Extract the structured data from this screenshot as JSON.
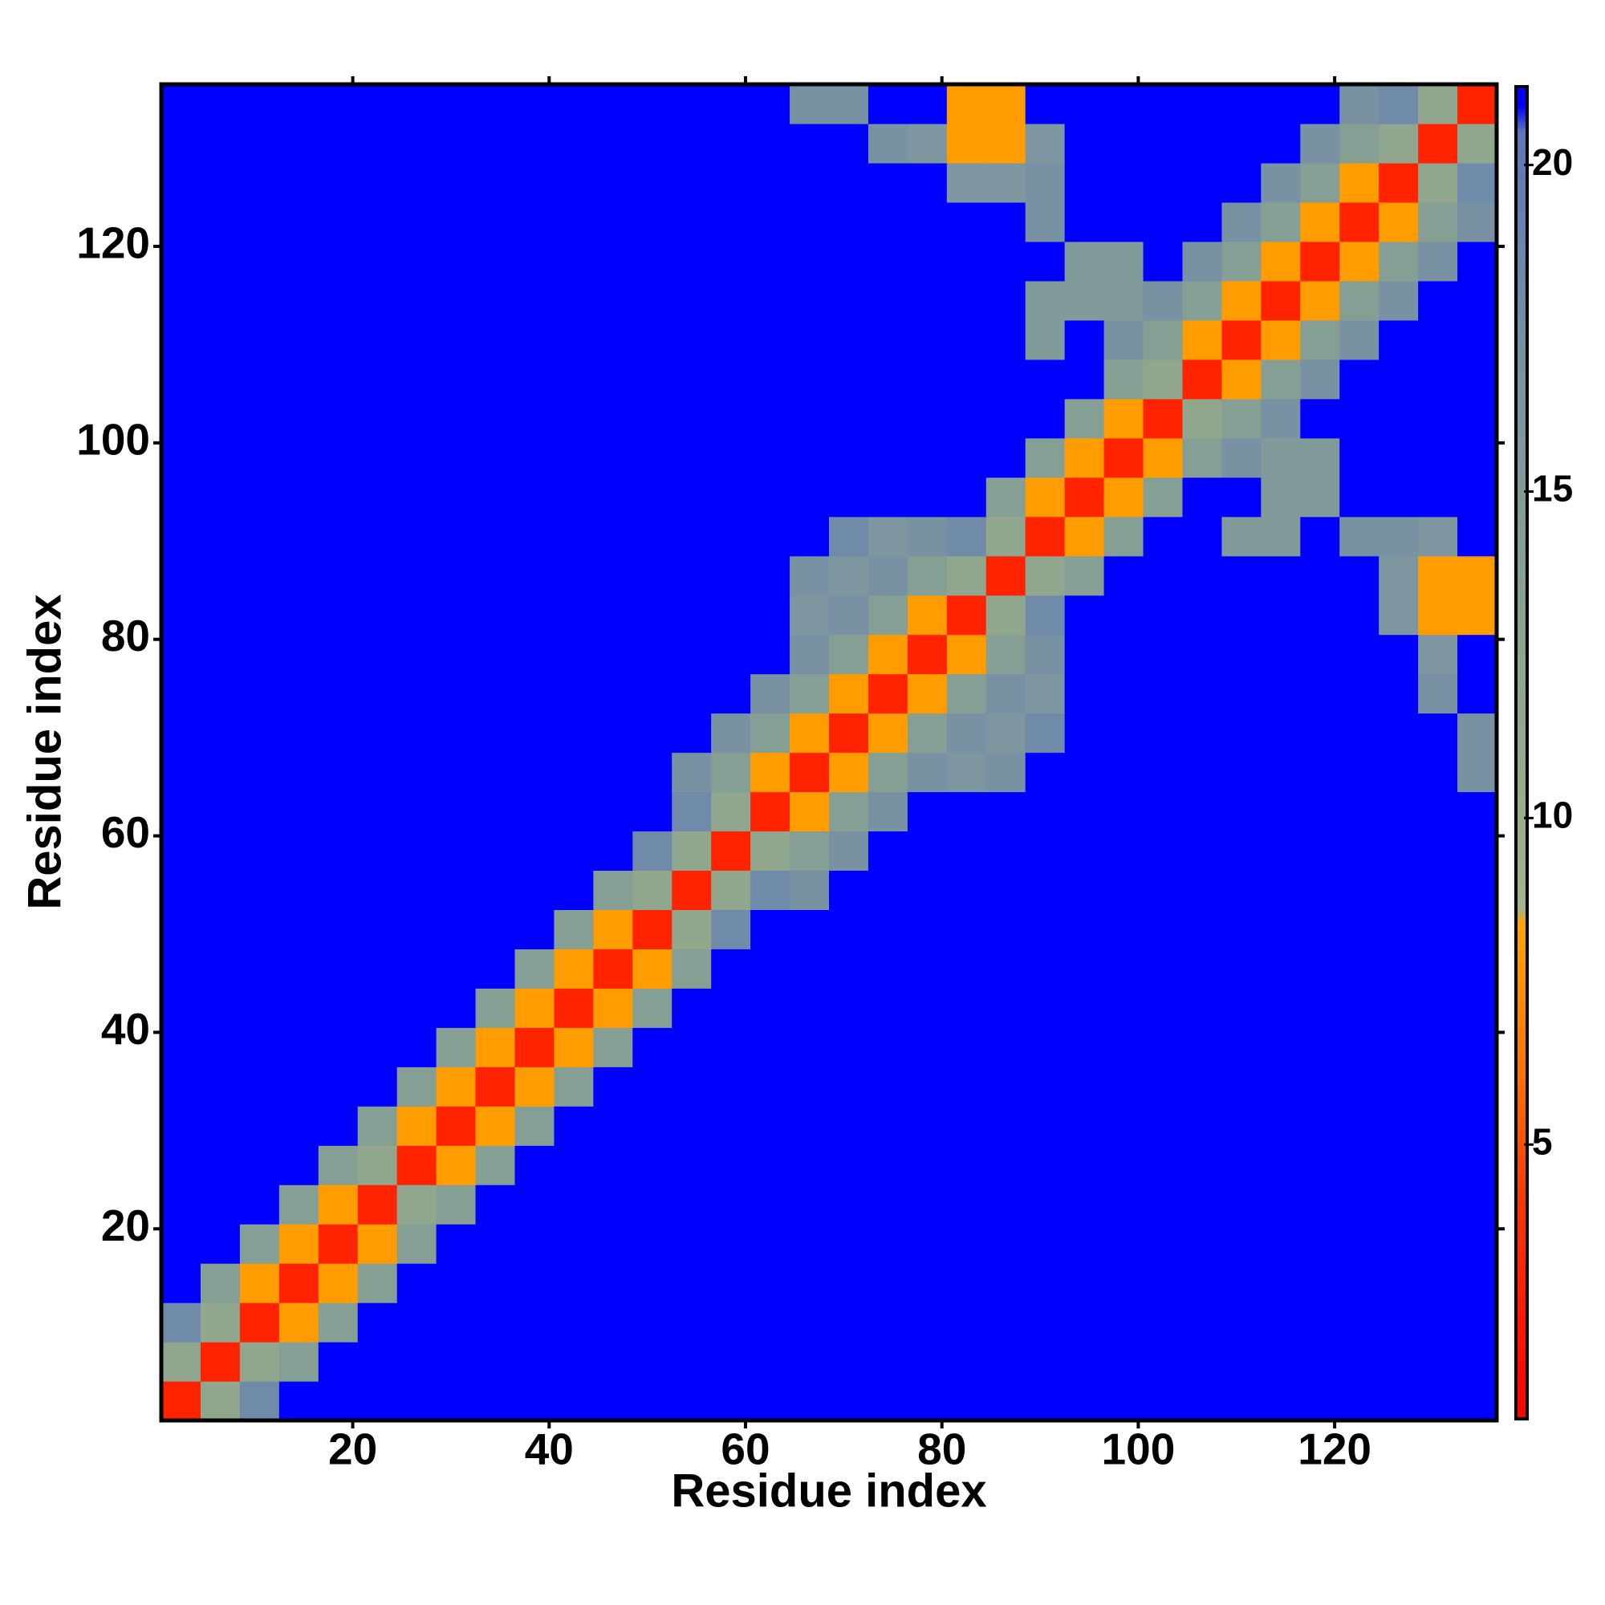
{
  "chart_data": {
    "type": "heatmap",
    "xlabel": "Residue index",
    "ylabel": "Residue index",
    "x": [
      2.5,
      6.5,
      10.5,
      14.5,
      18.5,
      22.5,
      26.5,
      30.5,
      34.5,
      38.5,
      42.5,
      46.5,
      50.5,
      54.5,
      58.5,
      62.5,
      66.5,
      70.5,
      74.5,
      78.5,
      82.5,
      86.5,
      90.5,
      94.5,
      98.5,
      102.5,
      106.5,
      110.5,
      114.5,
      118.5,
      122.5,
      126.5,
      130.5,
      134.5
    ],
    "y": [
      2.5,
      6.5,
      10.5,
      14.5,
      18.5,
      22.5,
      26.5,
      30.5,
      34.5,
      38.5,
      42.5,
      46.5,
      50.5,
      54.5,
      58.5,
      62.5,
      66.5,
      70.5,
      74.5,
      78.5,
      82.5,
      86.5,
      90.5,
      94.5,
      98.5,
      102.5,
      106.5,
      110.5,
      114.5,
      118.5,
      122.5,
      126.5,
      130.5,
      134.5
    ],
    "z": [
      [
        3,
        12,
        18,
        21,
        21,
        21,
        21,
        21,
        21,
        21,
        21,
        21,
        21,
        21,
        21,
        21,
        21,
        21,
        21,
        21,
        21,
        21,
        21,
        21,
        21,
        21,
        21,
        21,
        21,
        21,
        21,
        21,
        21,
        21
      ],
      [
        12,
        3,
        12,
        14,
        21,
        21,
        21,
        21,
        21,
        21,
        21,
        21,
        21,
        21,
        21,
        21,
        21,
        21,
        21,
        21,
        21,
        21,
        21,
        21,
        21,
        21,
        21,
        21,
        21,
        21,
        21,
        21,
        21,
        21
      ],
      [
        18,
        12,
        3,
        8,
        14,
        21,
        21,
        21,
        21,
        21,
        21,
        21,
        21,
        21,
        21,
        21,
        21,
        21,
        21,
        21,
        21,
        21,
        21,
        21,
        21,
        21,
        21,
        21,
        21,
        21,
        21,
        21,
        21,
        21
      ],
      [
        21,
        14,
        8,
        3,
        8,
        14,
        21,
        21,
        21,
        21,
        21,
        21,
        21,
        21,
        21,
        21,
        21,
        21,
        21,
        21,
        21,
        21,
        21,
        21,
        21,
        21,
        21,
        21,
        21,
        21,
        21,
        21,
        21,
        21
      ],
      [
        21,
        21,
        14,
        8,
        3,
        8,
        14,
        21,
        21,
        21,
        21,
        21,
        21,
        21,
        21,
        21,
        21,
        21,
        21,
        21,
        21,
        21,
        21,
        21,
        21,
        21,
        21,
        21,
        21,
        21,
        21,
        21,
        21,
        21
      ],
      [
        21,
        21,
        21,
        14,
        8,
        3,
        12,
        14,
        21,
        21,
        21,
        21,
        21,
        21,
        21,
        21,
        21,
        21,
        21,
        21,
        21,
        21,
        21,
        21,
        21,
        21,
        21,
        21,
        21,
        21,
        21,
        21,
        21,
        21
      ],
      [
        21,
        21,
        21,
        21,
        14,
        12,
        3,
        8,
        14,
        21,
        21,
        21,
        21,
        21,
        21,
        21,
        21,
        21,
        21,
        21,
        21,
        21,
        21,
        21,
        21,
        21,
        21,
        21,
        21,
        21,
        21,
        21,
        21,
        21
      ],
      [
        21,
        21,
        21,
        21,
        21,
        14,
        8,
        3,
        8,
        14,
        21,
        21,
        21,
        21,
        21,
        21,
        21,
        21,
        21,
        21,
        21,
        21,
        21,
        21,
        21,
        21,
        21,
        21,
        21,
        21,
        21,
        21,
        21,
        21
      ],
      [
        21,
        21,
        21,
        21,
        21,
        21,
        14,
        8,
        3,
        8,
        14,
        21,
        21,
        21,
        21,
        21,
        21,
        21,
        21,
        21,
        21,
        21,
        21,
        21,
        21,
        21,
        21,
        21,
        21,
        21,
        21,
        21,
        21,
        21
      ],
      [
        21,
        21,
        21,
        21,
        21,
        21,
        21,
        14,
        8,
        3,
        8,
        14,
        21,
        21,
        21,
        21,
        21,
        21,
        21,
        21,
        21,
        21,
        21,
        21,
        21,
        21,
        21,
        21,
        21,
        21,
        21,
        21,
        21,
        21
      ],
      [
        21,
        21,
        21,
        21,
        21,
        21,
        21,
        21,
        14,
        8,
        3,
        8,
        14,
        21,
        21,
        21,
        21,
        21,
        21,
        21,
        21,
        21,
        21,
        21,
        21,
        21,
        21,
        21,
        21,
        21,
        21,
        21,
        21,
        21
      ],
      [
        21,
        21,
        21,
        21,
        21,
        21,
        21,
        21,
        21,
        14,
        8,
        3,
        8,
        14,
        21,
        21,
        21,
        21,
        21,
        21,
        21,
        21,
        21,
        21,
        21,
        21,
        21,
        21,
        21,
        21,
        21,
        21,
        21,
        21
      ],
      [
        21,
        21,
        21,
        21,
        21,
        21,
        21,
        21,
        21,
        21,
        14,
        8,
        3,
        12,
        18,
        21,
        21,
        21,
        21,
        21,
        21,
        21,
        21,
        21,
        21,
        21,
        21,
        21,
        21,
        21,
        21,
        21,
        21,
        21
      ],
      [
        21,
        21,
        21,
        21,
        21,
        21,
        21,
        21,
        21,
        21,
        21,
        14,
        12,
        3,
        12,
        18,
        17,
        21,
        21,
        21,
        21,
        21,
        21,
        21,
        21,
        21,
        21,
        21,
        21,
        21,
        21,
        21,
        21,
        21
      ],
      [
        21,
        21,
        21,
        21,
        21,
        21,
        21,
        21,
        21,
        21,
        21,
        21,
        18,
        12,
        3,
        12,
        14,
        17,
        21,
        21,
        21,
        21,
        21,
        21,
        21,
        21,
        21,
        21,
        21,
        21,
        21,
        21,
        21,
        21
      ],
      [
        21,
        21,
        21,
        21,
        21,
        21,
        21,
        21,
        21,
        21,
        21,
        21,
        21,
        18,
        12,
        3,
        8,
        14,
        17,
        21,
        21,
        21,
        21,
        21,
        21,
        21,
        21,
        21,
        21,
        21,
        21,
        21,
        21,
        21
      ],
      [
        21,
        21,
        21,
        21,
        21,
        21,
        21,
        21,
        21,
        21,
        21,
        21,
        21,
        17,
        14,
        8,
        3,
        8,
        14,
        17,
        16,
        17,
        21,
        21,
        21,
        21,
        21,
        21,
        21,
        21,
        21,
        21,
        21,
        17
      ],
      [
        21,
        21,
        21,
        21,
        21,
        21,
        21,
        21,
        21,
        21,
        21,
        21,
        21,
        21,
        17,
        14,
        8,
        3,
        8,
        14,
        17,
        16,
        18,
        21,
        21,
        21,
        21,
        21,
        21,
        21,
        21,
        21,
        21,
        17
      ],
      [
        21,
        21,
        21,
        21,
        21,
        21,
        21,
        21,
        21,
        21,
        21,
        21,
        21,
        21,
        21,
        17,
        14,
        8,
        3,
        8,
        14,
        17,
        16,
        21,
        21,
        21,
        21,
        21,
        21,
        21,
        21,
        21,
        17,
        21
      ],
      [
        21,
        21,
        21,
        21,
        21,
        21,
        21,
        21,
        21,
        21,
        21,
        21,
        21,
        21,
        21,
        21,
        17,
        14,
        8,
        3,
        8,
        14,
        17,
        21,
        21,
        21,
        21,
        21,
        21,
        21,
        21,
        21,
        16,
        21
      ],
      [
        21,
        21,
        21,
        21,
        21,
        21,
        21,
        21,
        21,
        21,
        21,
        21,
        21,
        21,
        21,
        21,
        16,
        17,
        14,
        8,
        3,
        12,
        18,
        21,
        21,
        21,
        21,
        21,
        21,
        21,
        21,
        16,
        8,
        8
      ],
      [
        21,
        21,
        21,
        21,
        21,
        21,
        21,
        21,
        21,
        21,
        21,
        21,
        21,
        21,
        21,
        21,
        17,
        16,
        17,
        14,
        12,
        3,
        12,
        14,
        21,
        21,
        21,
        21,
        21,
        21,
        21,
        16,
        8,
        8
      ],
      [
        21,
        21,
        21,
        21,
        21,
        21,
        21,
        21,
        21,
        21,
        21,
        21,
        21,
        21,
        21,
        21,
        21,
        18,
        16,
        17,
        18,
        12,
        3,
        8,
        14,
        21,
        21,
        15,
        15,
        21,
        17,
        17,
        16,
        21
      ],
      [
        21,
        21,
        21,
        21,
        21,
        21,
        21,
        21,
        21,
        21,
        21,
        21,
        21,
        21,
        21,
        21,
        21,
        21,
        21,
        21,
        21,
        14,
        8,
        3,
        8,
        14,
        21,
        21,
        15,
        15,
        21,
        21,
        21,
        21
      ],
      [
        21,
        21,
        21,
        21,
        21,
        21,
        21,
        21,
        21,
        21,
        21,
        21,
        21,
        21,
        21,
        21,
        21,
        21,
        21,
        21,
        21,
        21,
        14,
        8,
        3,
        8,
        14,
        17,
        15,
        15,
        21,
        21,
        21,
        21
      ],
      [
        21,
        21,
        21,
        21,
        21,
        21,
        21,
        21,
        21,
        21,
        21,
        21,
        21,
        21,
        21,
        21,
        21,
        21,
        21,
        21,
        21,
        21,
        21,
        14,
        8,
        3,
        12,
        14,
        17,
        21,
        21,
        21,
        21,
        21
      ],
      [
        21,
        21,
        21,
        21,
        21,
        21,
        21,
        21,
        21,
        21,
        21,
        21,
        21,
        21,
        21,
        21,
        21,
        21,
        21,
        21,
        21,
        21,
        21,
        21,
        14,
        12,
        3,
        8,
        14,
        17,
        21,
        21,
        21,
        21
      ],
      [
        21,
        21,
        21,
        21,
        21,
        21,
        21,
        21,
        21,
        21,
        21,
        21,
        21,
        21,
        21,
        21,
        21,
        21,
        21,
        21,
        21,
        21,
        15,
        21,
        17,
        14,
        8,
        3,
        8,
        14,
        17,
        21,
        21,
        21
      ],
      [
        21,
        21,
        21,
        21,
        21,
        21,
        21,
        21,
        21,
        21,
        21,
        21,
        21,
        21,
        21,
        21,
        21,
        21,
        21,
        21,
        21,
        21,
        15,
        15,
        15,
        17,
        14,
        8,
        3,
        8,
        14,
        17,
        21,
        21
      ],
      [
        21,
        21,
        21,
        21,
        21,
        21,
        21,
        21,
        21,
        21,
        21,
        21,
        21,
        21,
        21,
        21,
        21,
        21,
        21,
        21,
        21,
        21,
        21,
        15,
        15,
        21,
        17,
        14,
        8,
        3,
        8,
        14,
        17,
        21
      ],
      [
        21,
        21,
        21,
        21,
        21,
        21,
        21,
        21,
        21,
        21,
        21,
        21,
        21,
        21,
        21,
        21,
        21,
        21,
        21,
        21,
        21,
        21,
        17,
        21,
        21,
        21,
        21,
        17,
        14,
        8,
        3,
        8,
        14,
        17
      ],
      [
        21,
        21,
        21,
        21,
        21,
        21,
        21,
        21,
        21,
        21,
        21,
        21,
        21,
        21,
        21,
        21,
        21,
        21,
        21,
        21,
        16,
        16,
        17,
        21,
        21,
        21,
        21,
        21,
        17,
        14,
        8,
        3,
        12,
        18
      ],
      [
        21,
        21,
        21,
        21,
        21,
        21,
        21,
        21,
        21,
        21,
        21,
        21,
        21,
        21,
        21,
        21,
        21,
        21,
        17,
        16,
        8,
        8,
        16,
        21,
        21,
        21,
        21,
        21,
        21,
        17,
        14,
        12,
        3,
        12
      ],
      [
        21,
        21,
        21,
        21,
        21,
        21,
        21,
        21,
        21,
        21,
        21,
        21,
        21,
        21,
        21,
        21,
        17,
        17,
        21,
        21,
        8,
        8,
        21,
        21,
        21,
        21,
        21,
        21,
        21,
        21,
        17,
        18,
        12,
        3
      ]
    ],
    "xlim": [
      0.5,
      136.5
    ],
    "ylim": [
      0.5,
      136.5
    ],
    "xticks": [
      20,
      40,
      60,
      80,
      100,
      120
    ],
    "yticks": [
      20,
      40,
      60,
      80,
      100,
      120
    ],
    "colorbar": {
      "lim": [
        0.8,
        21.2
      ],
      "ticks": [
        5,
        10,
        15,
        20
      ],
      "colorscale": [
        [
          0.8,
          "#ff0000"
        ],
        [
          4,
          "#ff3300"
        ],
        [
          6,
          "#ff7000"
        ],
        [
          8.4,
          "#ffa500"
        ],
        [
          8.6,
          "#a3b38a"
        ],
        [
          13,
          "#8aa38f"
        ],
        [
          17,
          "#7892a4"
        ],
        [
          20.5,
          "#5c78b8"
        ],
        [
          20.9,
          "#0000ff"
        ],
        [
          21.2,
          "#0000ff"
        ]
      ]
    }
  }
}
